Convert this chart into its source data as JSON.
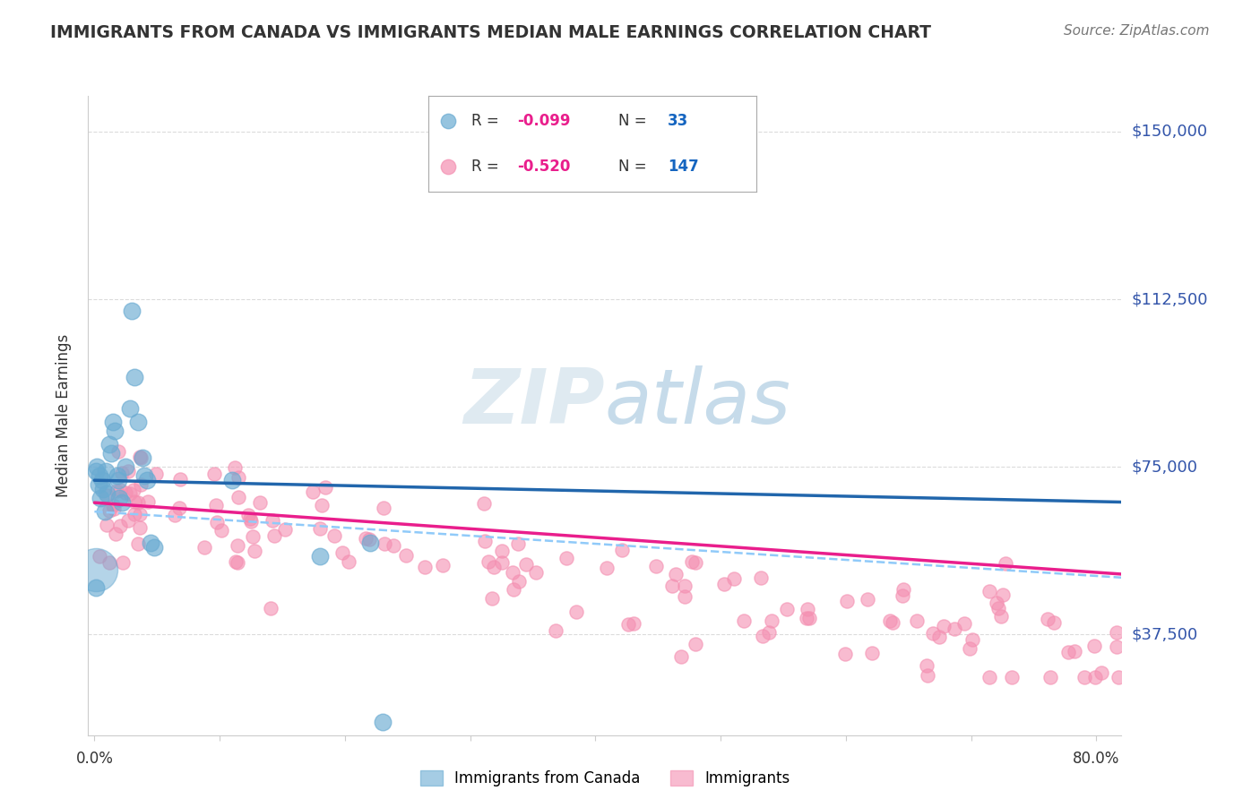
{
  "title": "IMMIGRANTS FROM CANADA VS IMMIGRANTS MEDIAN MALE EARNINGS CORRELATION CHART",
  "source": "Source: ZipAtlas.com",
  "ylabel": "Median Male Earnings",
  "yticks": [
    37500,
    75000,
    112500,
    150000
  ],
  "ytick_labels": [
    "$37,500",
    "$75,000",
    "$112,500",
    "$150,000"
  ],
  "ymin": 15000,
  "ymax": 158000,
  "xmin": -0.005,
  "xmax": 0.82,
  "blue_color": "#6aabd2",
  "pink_color": "#f48fb1",
  "blue_line_color": "#2166ac",
  "pink_line_color": "#e91e8c",
  "blue_dash_color": "#90caf9",
  "background_color": "#ffffff",
  "grid_color": "#cccccc",
  "axis_label_color": "#3355aa",
  "title_color": "#333333",
  "blue_x": [
    0.001,
    0.002,
    0.003,
    0.004,
    0.005,
    0.007,
    0.008,
    0.009,
    0.012,
    0.015,
    0.018,
    0.02,
    0.025,
    0.028,
    0.03,
    0.032,
    0.035,
    0.038,
    0.04,
    0.042,
    0.045,
    0.048,
    0.11,
    0.18,
    0.22,
    0.23,
    0.001,
    0.006,
    0.01,
    0.013,
    0.016,
    0.019,
    0.022
  ],
  "blue_y": [
    74000,
    75000,
    71000,
    73000,
    68000,
    70000,
    65000,
    74000,
    80000,
    85000,
    73000,
    68000,
    75000,
    88000,
    110000,
    95000,
    85000,
    77000,
    73000,
    72000,
    58000,
    57000,
    72000,
    55000,
    58000,
    18000,
    48000,
    72000,
    69000,
    78000,
    83000,
    72000,
    67000
  ],
  "blue_intercept": 72000,
  "blue_slope": -5940,
  "blue_dash_intercept": 65000,
  "blue_dash_slope": -18000,
  "pink_intercept": 67000,
  "pink_slope": -19500
}
